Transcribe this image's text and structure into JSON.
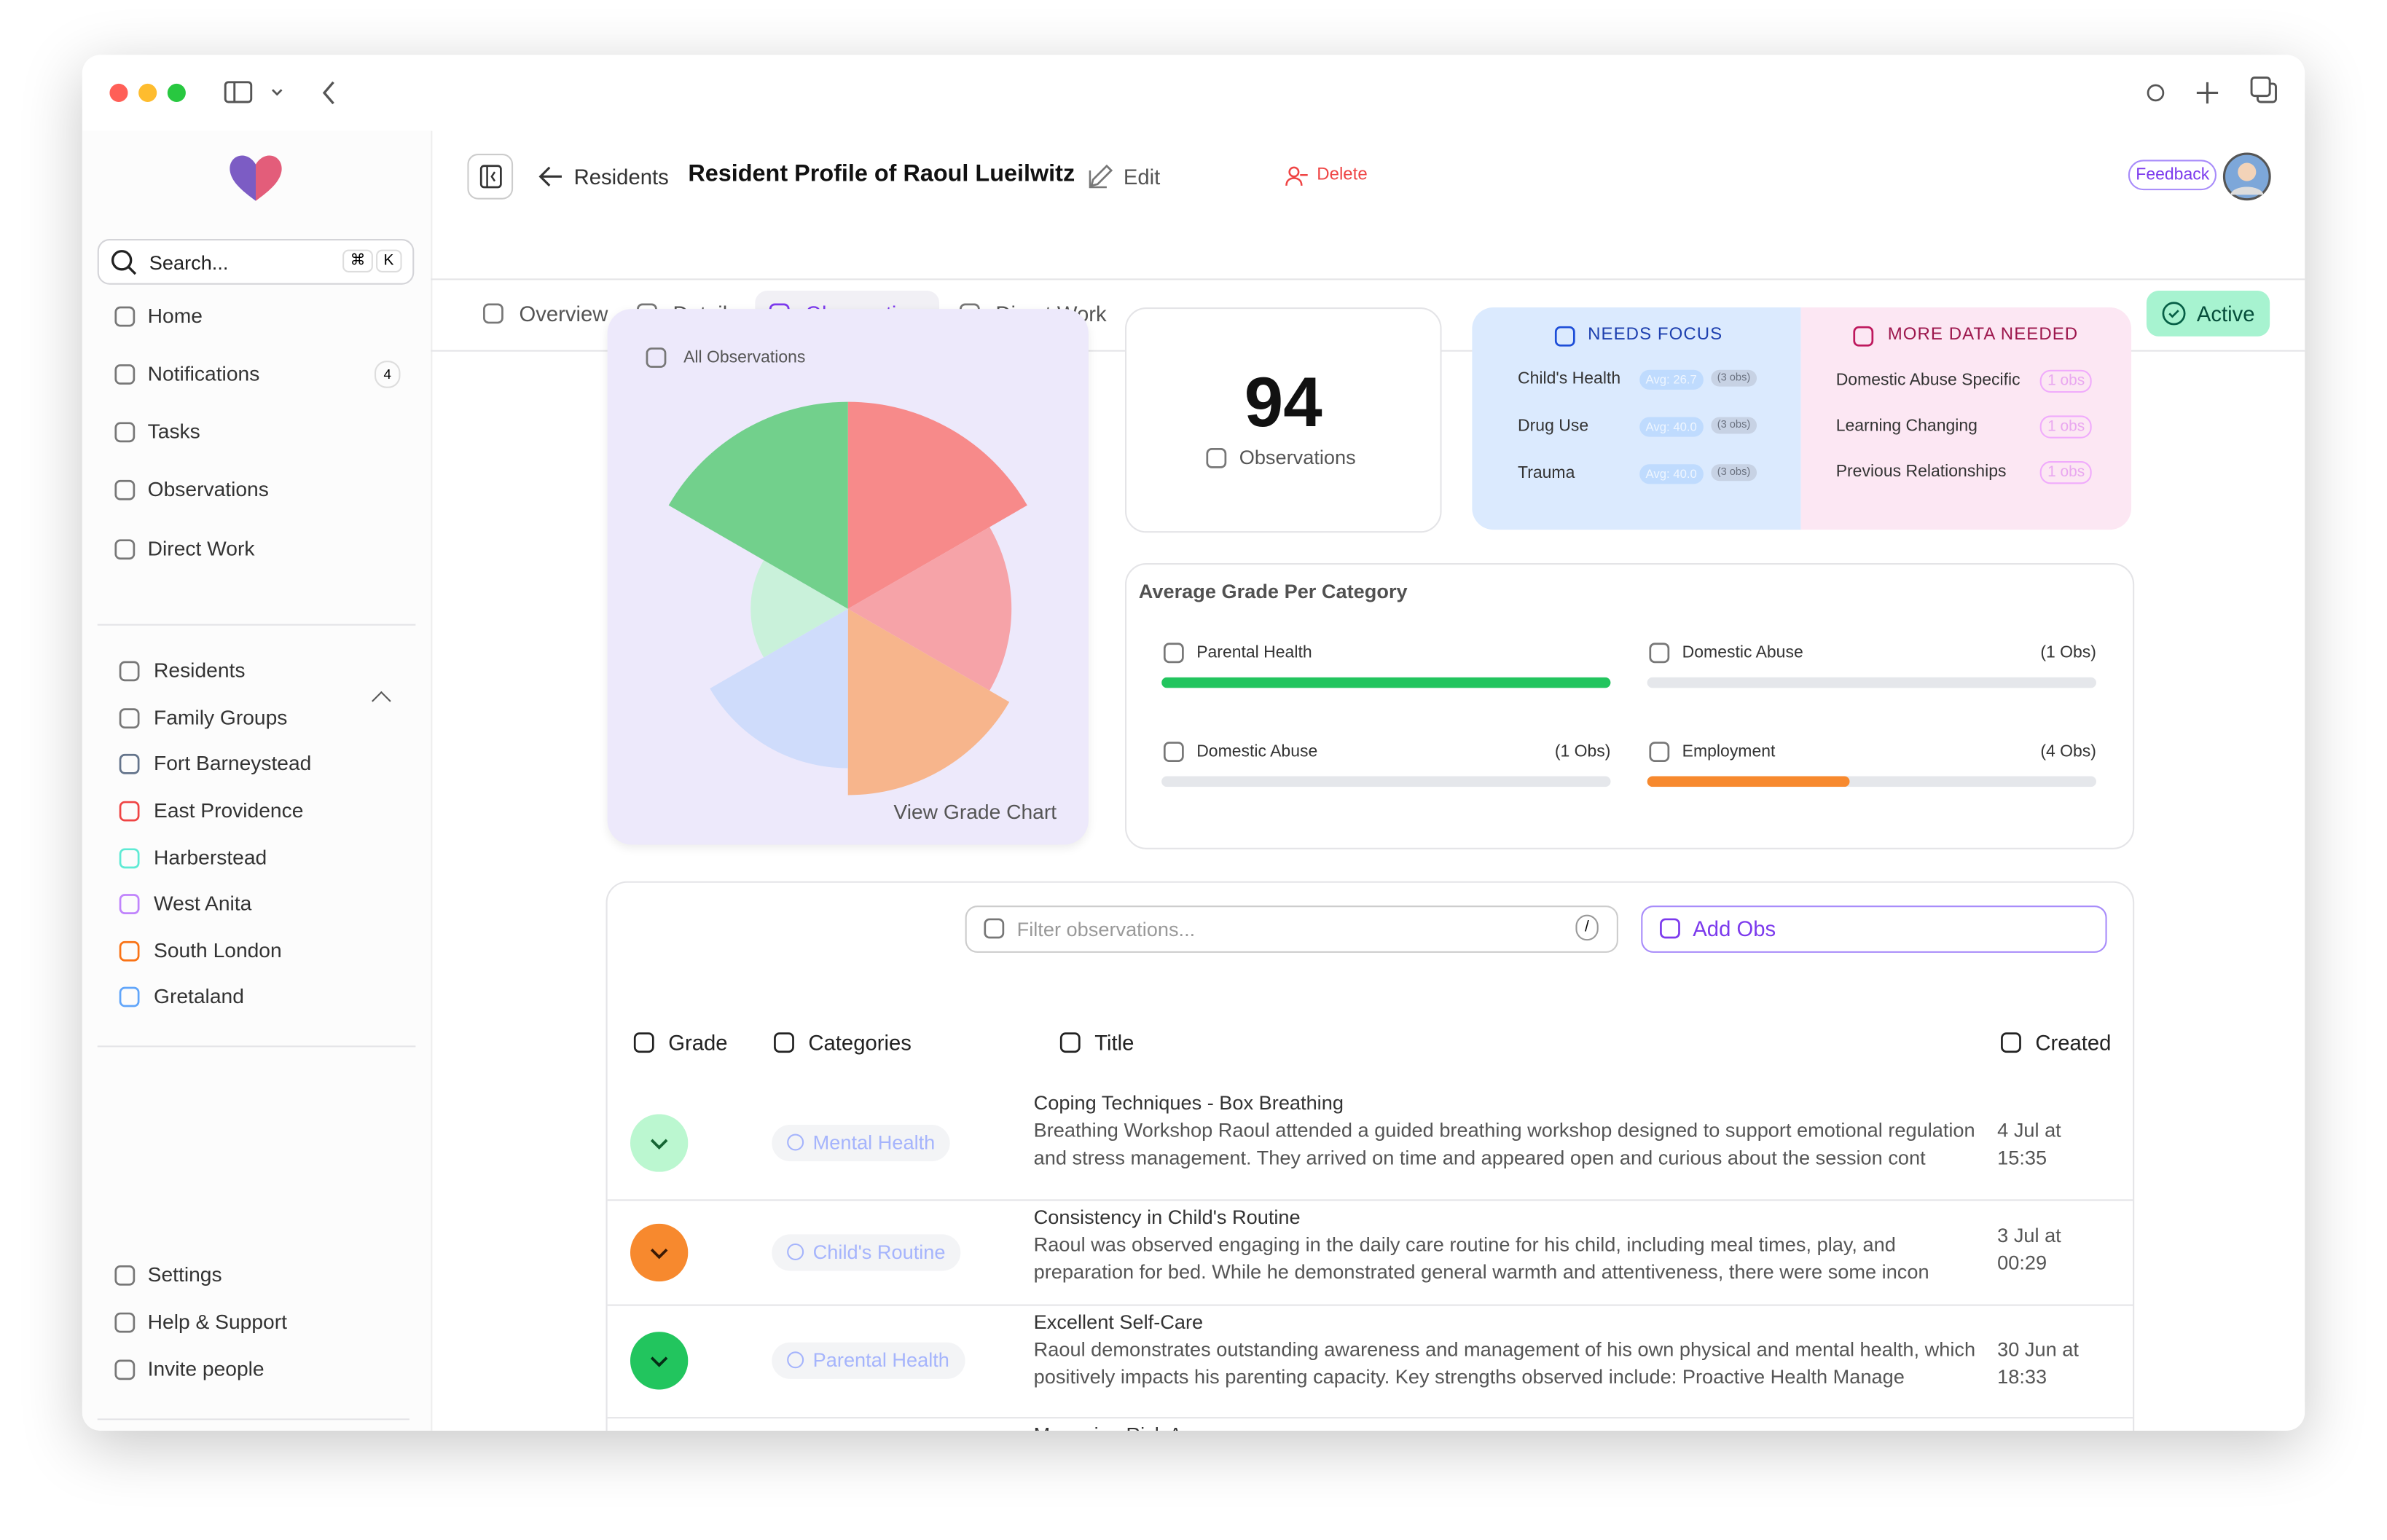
{
  "sidebar": {
    "search": {
      "placeholder": "Search...",
      "keys": [
        "⌘",
        "K"
      ]
    },
    "nav": [
      {
        "label": "Home"
      },
      {
        "label": "Notifications",
        "badge": 4
      },
      {
        "label": "Tasks"
      },
      {
        "label": "Observations"
      },
      {
        "label": "Direct Work"
      }
    ],
    "groups": [
      {
        "label": "Residents"
      },
      {
        "label": "Family Groups"
      },
      {
        "label": "Fort Barneystead",
        "color": "#64748b"
      },
      {
        "label": "East Providence",
        "color": "#ef4444"
      },
      {
        "label": "Harberstead",
        "color": "#5eead4"
      },
      {
        "label": "West Anita",
        "color": "#c084fc"
      },
      {
        "label": "South London",
        "color": "#f97316"
      },
      {
        "label": "Gretaland",
        "color": "#60a5fa"
      }
    ],
    "footer": [
      {
        "label": "Settings"
      },
      {
        "label": "Help & Support"
      },
      {
        "label": "Invite people"
      }
    ]
  },
  "header": {
    "back": "Residents",
    "title": "Resident Profile of Raoul Lueilwitz",
    "edit": "Edit",
    "delete": "Delete",
    "feedback": "Feedback"
  },
  "tabs": {
    "items": [
      "Overview",
      "Details",
      "Observations",
      "Direct Work"
    ],
    "active": 2,
    "status": "Active"
  },
  "chart_card": {
    "label": "All Observations",
    "link": "View Grade Chart",
    "chart_data": {
      "type": "polar-area",
      "values": [
        100,
        79,
        90,
        77,
        47,
        100
      ],
      "colors": [
        "#f78a8a",
        "#f6a3a8",
        "#f7b58c",
        "#cfdcfb",
        "#c9f1da",
        "#72d08c"
      ],
      "rlim": [
        0,
        100
      ]
    }
  },
  "count_card": {
    "value": 94,
    "label": "Observations"
  },
  "needs_focus": {
    "title": "NEEDS FOCUS",
    "items": [
      {
        "name": "Child's Health",
        "avg": "Avg: 26.7",
        "obs": "(3 obs)"
      },
      {
        "name": "Drug Use",
        "avg": "Avg: 40.0",
        "obs": "(3 obs)"
      },
      {
        "name": "Trauma",
        "avg": "Avg: 40.0",
        "obs": "(3 obs)"
      }
    ]
  },
  "more_data": {
    "title": "MORE DATA NEEDED",
    "items": [
      {
        "name": "Domestic Abuse Specific",
        "obs": "1 obs"
      },
      {
        "name": "Learning Changing",
        "obs": "1 obs"
      },
      {
        "name": "Previous Relationships",
        "obs": "1 obs"
      }
    ]
  },
  "avg_grade": {
    "title": "Average Grade Per Category",
    "items": [
      {
        "name": "Parental Health",
        "progress": 100,
        "color": "#22c55e"
      },
      {
        "name": "Domestic Abuse",
        "count": "(1 Obs)",
        "progress": 0,
        "color": "#22c55e"
      },
      {
        "name": "Domestic Abuse",
        "count": "(1 Obs)",
        "progress": 0,
        "color": "#22c55e"
      },
      {
        "name": "Employment",
        "count": "(4 Obs)",
        "progress": 45,
        "color": "#f7892e"
      }
    ]
  },
  "table": {
    "filter": "Filter observations...",
    "filter_key": "/",
    "add": "Add Obs",
    "columns": [
      "Grade",
      "Categories",
      "Title",
      "Created"
    ],
    "rows": [
      {
        "grade_color": "#bbf7d0",
        "icon_color": "#166534",
        "category": "Mental Health",
        "title": "Coping Techniques - Box Breathing",
        "body": "Breathing Workshop Raoul attended a guided breathing workshop designed to support emotional regulation and stress management. They arrived on time and appeared open and curious about the session cont",
        "created": "4 Jul at 15:35"
      },
      {
        "grade_color": "#f7892e",
        "icon_color": "#3b1a05",
        "category": "Child's Routine",
        "title": "Consistency in Child's Routine",
        "body": "Raoul was observed engaging in the daily care routine for his child, including meal times, play, and preparation for bed. While he demonstrated general warmth and attentiveness, there were some incon",
        "created": "3 Jul at 00:29"
      },
      {
        "grade_color": "#22c55e",
        "icon_color": "#052e16",
        "category": "Parental Health",
        "title": "Excellent Self-Care",
        "body": "Raoul demonstrates outstanding awareness and management of his own physical and mental health, which positively impacts his parenting capacity. Key strengths observed include: Proactive Health Manage",
        "created": "30 Jun at 18:33"
      },
      {
        "title": "Managing Risk Awareness"
      }
    ]
  }
}
